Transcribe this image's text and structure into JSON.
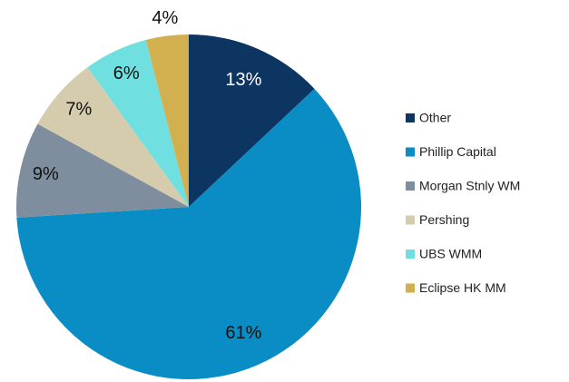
{
  "chart_data": {
    "type": "pie",
    "categories": [
      "Other",
      "Phillip Capital",
      "Morgan Stnly WM",
      "Pershing",
      "UBS WMM",
      "Eclipse HK MM"
    ],
    "values": [
      13,
      61,
      9,
      7,
      6,
      4
    ],
    "value_labels": [
      "13%",
      "61%",
      "9%",
      "7%",
      "6%",
      "4%"
    ],
    "colors": [
      "#0c3561",
      "#0a8cc4",
      "#7f8e9f",
      "#d5ccae",
      "#6fdfdf",
      "#d3b04f"
    ],
    "legend": "right"
  }
}
